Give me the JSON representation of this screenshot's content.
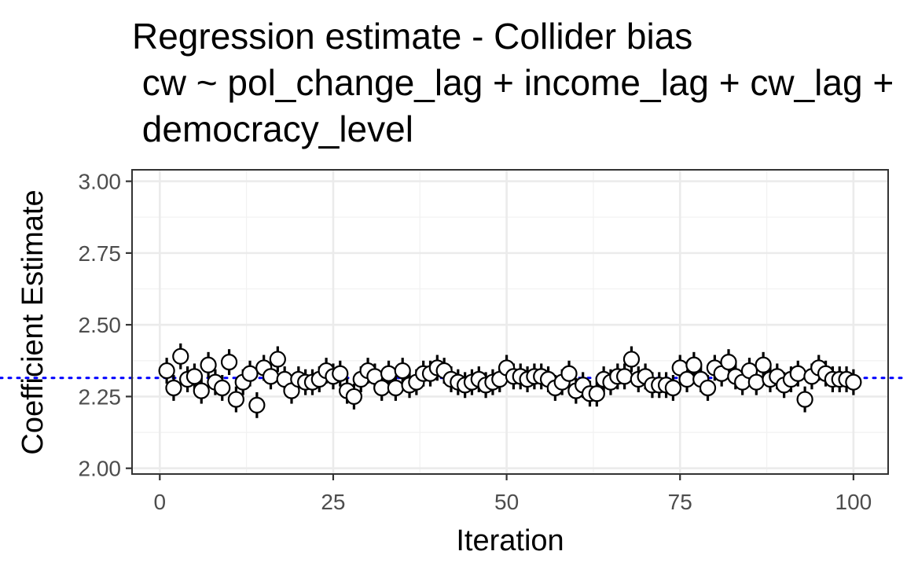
{
  "chart_data": {
    "type": "scatter",
    "title_lines": [
      "Regression estimate - Collider bias",
      " cw ~ pol_change_lag + income_lag + cw_lag +",
      " democracy_level"
    ],
    "xlabel": "Iteration",
    "ylabel": "Coefficient Estimate",
    "xlim": [
      -4,
      105
    ],
    "ylim": [
      1.98,
      3.04
    ],
    "x_ticks": [
      0,
      25,
      50,
      75,
      100
    ],
    "x_tick_labels": [
      "0",
      "25",
      "50",
      "75",
      "100"
    ],
    "y_ticks": [
      2.0,
      2.25,
      2.5,
      2.75,
      3.0
    ],
    "y_tick_labels": [
      "2.00",
      "2.25",
      "2.50",
      "2.75",
      "3.00"
    ],
    "grid": true,
    "legend": "none",
    "reference_line": {
      "y": 2.315,
      "color": "#0000ff",
      "style": "dotted"
    },
    "error_bar_halfwidth": 0.045,
    "x": [
      1,
      2,
      3,
      4,
      5,
      6,
      7,
      8,
      9,
      10,
      11,
      12,
      13,
      14,
      15,
      16,
      17,
      18,
      19,
      20,
      21,
      22,
      23,
      24,
      25,
      26,
      27,
      28,
      29,
      30,
      31,
      32,
      33,
      34,
      35,
      36,
      37,
      38,
      39,
      40,
      41,
      42,
      43,
      44,
      45,
      46,
      47,
      48,
      49,
      50,
      51,
      52,
      53,
      54,
      55,
      56,
      57,
      58,
      59,
      60,
      61,
      62,
      63,
      64,
      65,
      66,
      67,
      68,
      69,
      70,
      71,
      72,
      73,
      74,
      75,
      76,
      77,
      78,
      79,
      80,
      81,
      82,
      83,
      84,
      85,
      86,
      87,
      88,
      89,
      90,
      91,
      92,
      93,
      94,
      95,
      96,
      97,
      98,
      99,
      100
    ],
    "y": [
      2.34,
      2.28,
      2.39,
      2.31,
      2.32,
      2.27,
      2.36,
      2.3,
      2.28,
      2.37,
      2.24,
      2.3,
      2.33,
      2.22,
      2.35,
      2.32,
      2.38,
      2.31,
      2.27,
      2.31,
      2.3,
      2.3,
      2.31,
      2.34,
      2.32,
      2.33,
      2.27,
      2.25,
      2.31,
      2.34,
      2.32,
      2.28,
      2.33,
      2.28,
      2.34,
      2.29,
      2.3,
      2.33,
      2.33,
      2.35,
      2.34,
      2.31,
      2.3,
      2.29,
      2.3,
      2.31,
      2.29,
      2.3,
      2.31,
      2.35,
      2.32,
      2.32,
      2.31,
      2.32,
      2.32,
      2.31,
      2.28,
      2.3,
      2.33,
      2.27,
      2.29,
      2.26,
      2.26,
      2.31,
      2.3,
      2.32,
      2.32,
      2.38,
      2.31,
      2.32,
      2.29,
      2.29,
      2.29,
      2.28,
      2.35,
      2.31,
      2.36,
      2.31,
      2.28,
      2.35,
      2.33,
      2.37,
      2.32,
      2.3,
      2.34,
      2.3,
      2.36,
      2.31,
      2.32,
      2.29,
      2.31,
      2.33,
      2.24,
      2.32,
      2.35,
      2.33,
      2.31,
      2.31,
      2.31,
      2.3
    ]
  }
}
